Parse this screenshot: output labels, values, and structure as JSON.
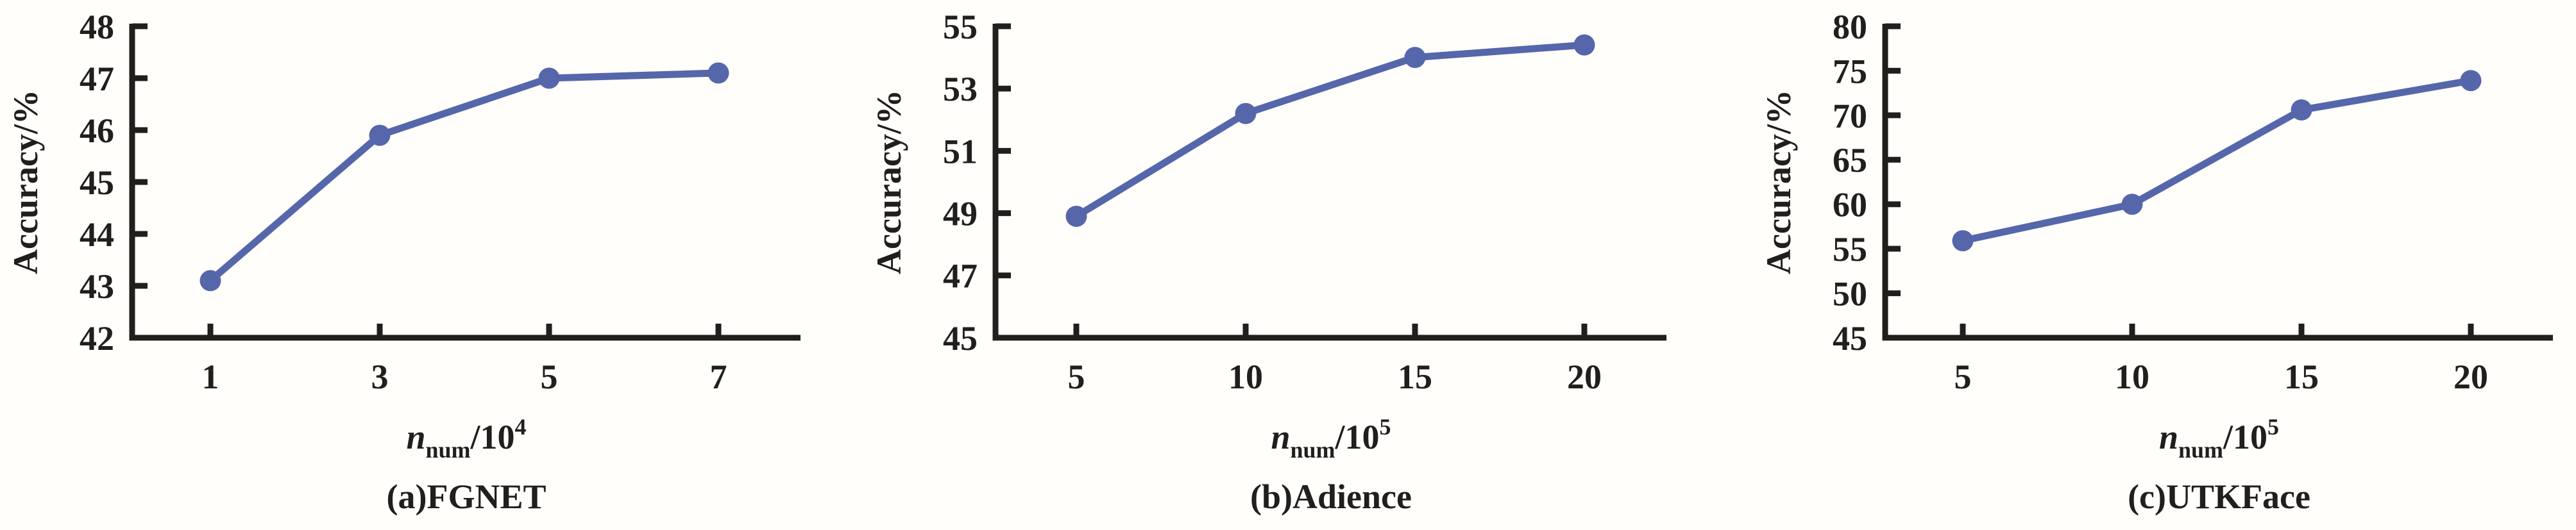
{
  "styles": {
    "line_color": "#5666aa",
    "axis_color": "#221e1b",
    "text_color": "#221e1b",
    "background": "#fffefb"
  },
  "chart_data": [
    {
      "type": "line",
      "caption": "(a)FGNET",
      "ylabel": "Accuracy/%",
      "xlabel": {
        "var": "n",
        "sub": "num",
        "rest": "/10",
        "exp": "4"
      },
      "x": [
        1,
        3,
        5,
        7
      ],
      "y": [
        43.1,
        45.9,
        47.0,
        47.1
      ],
      "xticks": [
        1,
        3,
        5,
        7
      ],
      "yticks": [
        42,
        43,
        44,
        45,
        46,
        47,
        48
      ],
      "ylim": [
        42,
        48
      ],
      "grid": false,
      "legend": "none",
      "marker": "circle"
    },
    {
      "type": "line",
      "caption": "(b)Adience",
      "ylabel": "Accuracy/%",
      "xlabel": {
        "var": "n",
        "sub": "num",
        "rest": "/10",
        "exp": "5"
      },
      "x": [
        5,
        10,
        15,
        20
      ],
      "y": [
        48.9,
        52.2,
        54.0,
        54.4
      ],
      "xticks": [
        5,
        10,
        15,
        20
      ],
      "yticks": [
        45,
        47,
        49,
        51,
        53,
        55
      ],
      "ylim": [
        45,
        55
      ],
      "grid": false,
      "legend": "none",
      "marker": "circle"
    },
    {
      "type": "line",
      "caption": "(c)UTKFace",
      "ylabel": "Accuracy/%",
      "xlabel": {
        "var": "n",
        "sub": "num",
        "rest": "/10",
        "exp": "5"
      },
      "x": [
        5,
        10,
        15,
        20
      ],
      "y": [
        55.9,
        60.0,
        70.6,
        73.9
      ],
      "xticks": [
        5,
        10,
        15,
        20
      ],
      "yticks": [
        45,
        50,
        55,
        60,
        65,
        70,
        75,
        80
      ],
      "ylim": [
        45,
        80
      ],
      "grid": false,
      "legend": "none",
      "marker": "circle"
    }
  ]
}
